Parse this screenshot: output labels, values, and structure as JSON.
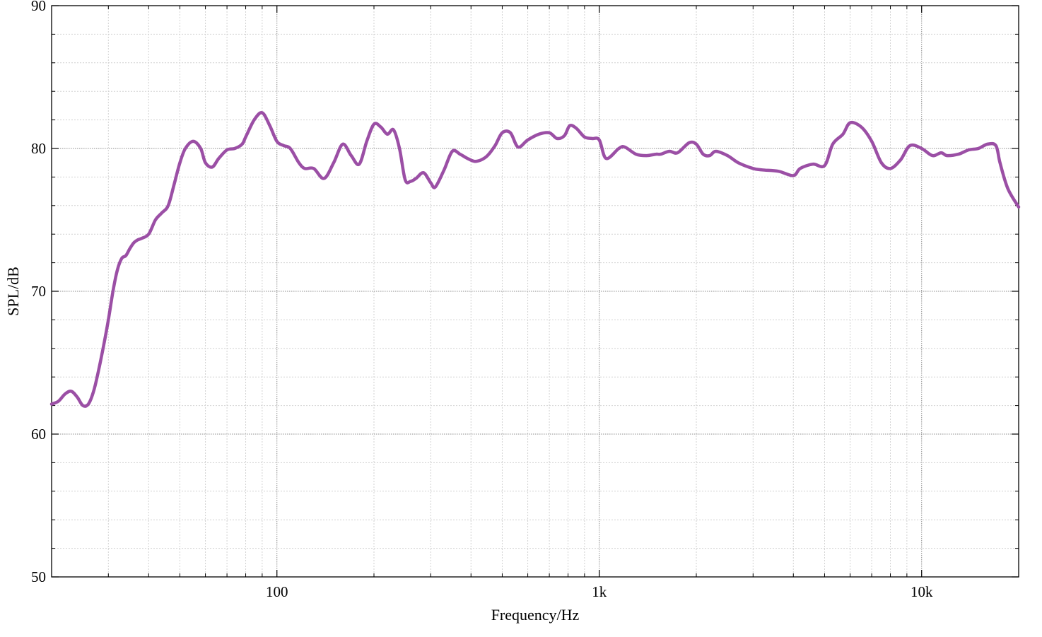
{
  "chart_data": {
    "type": "line",
    "title": "",
    "xlabel": "Frequency/Hz",
    "ylabel": "SPL/dB",
    "x_scale": "log",
    "xlim": [
      20,
      20000
    ],
    "ylim": [
      50,
      90
    ],
    "grid": true,
    "x_tick_values": [
      100,
      1000,
      10000
    ],
    "x_tick_labels": [
      "100",
      "1k",
      "10k"
    ],
    "y_tick_values": [
      50,
      60,
      70,
      80,
      90
    ],
    "y_tick_labels": [
      "50",
      "60",
      "70",
      "80",
      "90"
    ],
    "line_color": "#9b4fa5",
    "series": [
      {
        "x": [
          20,
          21,
          22,
          23,
          24,
          25,
          26,
          27,
          28,
          29,
          30,
          31,
          32,
          33,
          34,
          35,
          36,
          37,
          38,
          40,
          42,
          44,
          46,
          48,
          50,
          52,
          55,
          58,
          60,
          63,
          66,
          70,
          74,
          78,
          80,
          85,
          90,
          95,
          100,
          105,
          110,
          117,
          122,
          130,
          140,
          150,
          160,
          170,
          180,
          190,
          200,
          210,
          220,
          230,
          240,
          250,
          260,
          270,
          285,
          300,
          310,
          330,
          350,
          370,
          390,
          410,
          430,
          450,
          475,
          500,
          530,
          560,
          600,
          650,
          700,
          740,
          780,
          810,
          850,
          900,
          950,
          1000,
          1050,
          1150,
          1200,
          1300,
          1400,
          1500,
          1550,
          1650,
          1750,
          1900,
          2000,
          2100,
          2200,
          2300,
          2500,
          2700,
          3000,
          3200,
          3600,
          4000,
          4200,
          4600,
          5000,
          5300,
          5700,
          6000,
          6500,
          7000,
          7500,
          8000,
          8600,
          9200,
          10000,
          10800,
          11500,
          12000,
          13000,
          14000,
          15000,
          16000,
          17000,
          17500,
          18500,
          20000
        ],
        "values": [
          62.1,
          62.3,
          62.8,
          63.0,
          62.6,
          62.0,
          62.1,
          63.0,
          64.5,
          66.2,
          68.0,
          70.0,
          71.5,
          72.3,
          72.5,
          73.0,
          73.4,
          73.6,
          73.7,
          74.0,
          75.0,
          75.5,
          76.0,
          77.5,
          79.0,
          80.0,
          80.5,
          80.0,
          79.0,
          78.7,
          79.3,
          79.9,
          80.0,
          80.3,
          80.8,
          82.0,
          82.5,
          81.6,
          80.5,
          80.2,
          80.0,
          79.0,
          78.6,
          78.6,
          77.9,
          79.0,
          80.3,
          79.5,
          78.9,
          80.5,
          81.7,
          81.5,
          81.0,
          81.3,
          80.0,
          77.8,
          77.7,
          77.9,
          78.3,
          77.6,
          77.3,
          78.5,
          79.8,
          79.6,
          79.3,
          79.1,
          79.2,
          79.5,
          80.2,
          81.1,
          81.1,
          80.1,
          80.6,
          81.0,
          81.1,
          80.7,
          80.9,
          81.6,
          81.4,
          80.8,
          80.7,
          80.6,
          79.3,
          80.0,
          80.1,
          79.6,
          79.5,
          79.6,
          79.6,
          79.8,
          79.7,
          80.4,
          80.3,
          79.6,
          79.5,
          79.8,
          79.5,
          79.0,
          78.6,
          78.5,
          78.4,
          78.1,
          78.6,
          78.9,
          78.8,
          80.3,
          81.0,
          81.8,
          81.5,
          80.5,
          79.0,
          78.6,
          79.2,
          80.2,
          80.0,
          79.5,
          79.7,
          79.5,
          79.6,
          79.9,
          80.0,
          80.3,
          80.2,
          79.0,
          77.2,
          75.9
        ]
      }
    ]
  }
}
